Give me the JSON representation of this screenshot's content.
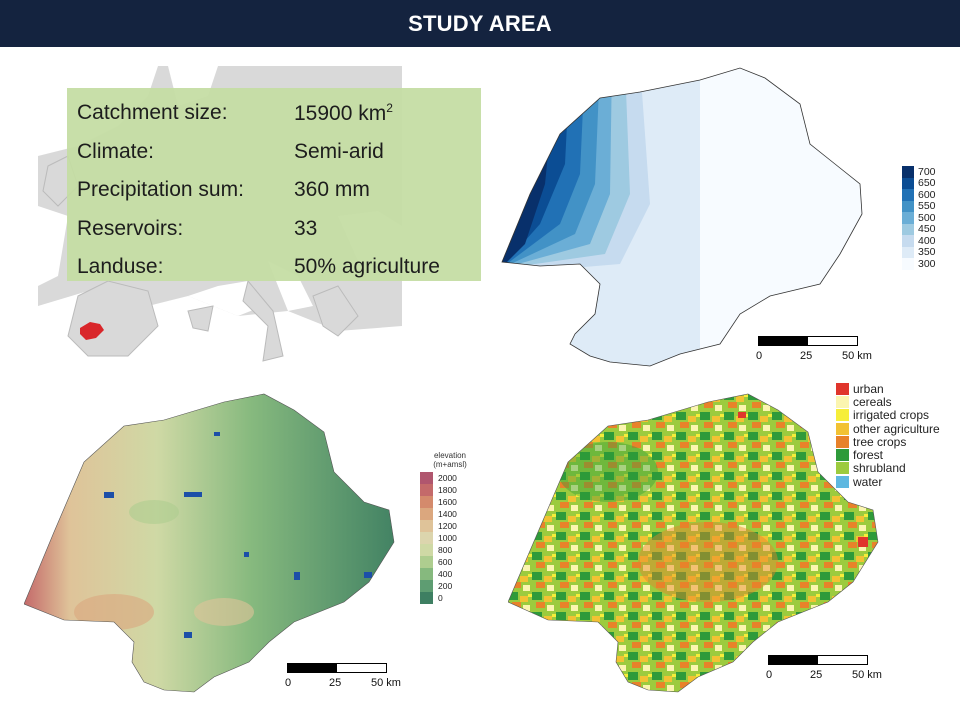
{
  "header": {
    "title": "STUDY AREA"
  },
  "info": {
    "rows": [
      {
        "label": "Catchment size:",
        "value": "15900 km",
        "sup": "2"
      },
      {
        "label": "Climate:",
        "value": "Semi-arid",
        "sup": ""
      },
      {
        "label": "Precipitation sum:",
        "value": "360 mm",
        "sup": ""
      },
      {
        "label": "Reservoirs:",
        "value": "33",
        "sup": ""
      },
      {
        "label": "Landuse:",
        "value": "50% agriculture",
        "sup": ""
      }
    ]
  },
  "precipitation_legend": {
    "classes": [
      {
        "label": "700",
        "color": "#08306b"
      },
      {
        "label": "650",
        "color": "#0b4d94"
      },
      {
        "label": "600",
        "color": "#2171b5"
      },
      {
        "label": "550",
        "color": "#4292c6"
      },
      {
        "label": "500",
        "color": "#6baed6"
      },
      {
        "label": "450",
        "color": "#9ecae1"
      },
      {
        "label": "400",
        "color": "#c6dbef"
      },
      {
        "label": "350",
        "color": "#deebf7"
      },
      {
        "label": "300",
        "color": "#f7fbff"
      }
    ]
  },
  "elevation_legend": {
    "title_line1": "elevation",
    "title_line2": "(m+amsl)",
    "classes": [
      {
        "label": "2000",
        "color": "#b0566e"
      },
      {
        "label": "1800",
        "color": "#c46a6a"
      },
      {
        "label": "1600",
        "color": "#d48a6c"
      },
      {
        "label": "1400",
        "color": "#dba77e"
      },
      {
        "label": "1200",
        "color": "#dfc399"
      },
      {
        "label": "1000",
        "color": "#dcd5ad"
      },
      {
        "label": "800",
        "color": "#cfd9a5"
      },
      {
        "label": "600",
        "color": "#aecd8f"
      },
      {
        "label": "400",
        "color": "#86b97e"
      },
      {
        "label": "200",
        "color": "#5e9d72"
      },
      {
        "label": "0",
        "color": "#3e7f62"
      }
    ]
  },
  "landuse_legend": {
    "classes": [
      {
        "label": "urban",
        "color": "#e0352c"
      },
      {
        "label": "cereals",
        "color": "#fbf5b0"
      },
      {
        "label": "irrigated crops",
        "color": "#f6ee3a"
      },
      {
        "label": "other agriculture",
        "color": "#f2c233"
      },
      {
        "label": "tree crops",
        "color": "#e8822a"
      },
      {
        "label": "forest",
        "color": "#2e9a3a"
      },
      {
        "label": "shrubland",
        "color": "#9ccb3e"
      },
      {
        "label": "water",
        "color": "#5eb8e0"
      }
    ]
  },
  "scalebars": {
    "precip": {
      "l0": "0",
      "l1": "25",
      "l2": "50 km"
    },
    "elevation": {
      "l0": "0",
      "l1": "25",
      "l2": "50 km"
    },
    "landuse": {
      "l0": "0",
      "l1": "25",
      "l2": "50 km"
    }
  },
  "locator_map": {
    "highlight_color": "#d9262a",
    "land_color": "#d9d9d9",
    "sea_color": "#ffffff"
  }
}
